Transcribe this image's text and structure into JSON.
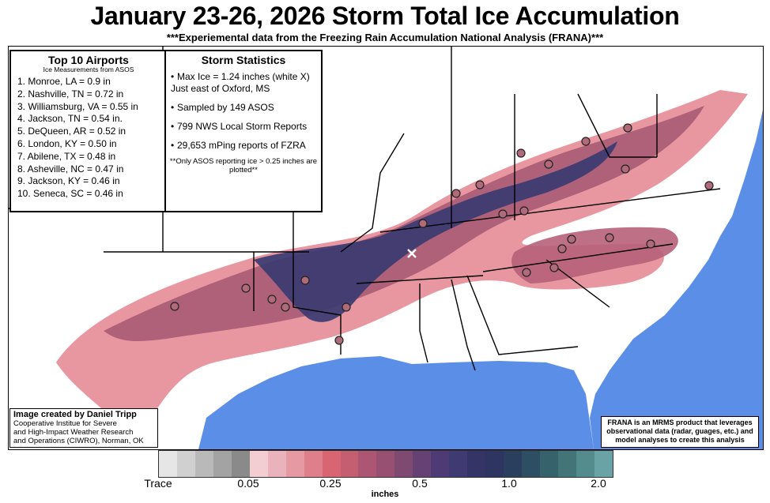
{
  "title": "January 23-26, 2026 Storm Total Ice Accumulation",
  "subtitle": "***Experiemental data from the Freezing Rain Accumulation National Analysis (FRANA)***",
  "airports": {
    "heading": "Top 10 Airports",
    "subheading": "Ice Measurements from ASOS",
    "items": [
      "1. Monroe, LA  = 0.9 in",
      "2. Nashville, TN = 0.72 in",
      "3. Williamsburg, VA = 0.55 in",
      "4. Jackson, TN = 0.54 in.",
      "5. DeQueen, AR = 0.52 in",
      "6. London, KY = 0.50 in",
      "7. Abilene, TX = 0.48 in",
      "8. Asheville, NC = 0.47 in",
      "9. Jackson, KY = 0.46 in",
      "10. Seneca, SC = 0.46 in"
    ]
  },
  "stats": {
    "heading": "Storm Statistics",
    "items": [
      "Max Ice = 1.24 inches (white X) Just east of Oxford, MS",
      "Sampled by 149 ASOS",
      "799 NWS Local Storm Reports",
      "29,653 mPing reports of FZRA"
    ],
    "note": "**Only ASOS reporting ice > 0.25 inches are plotted**"
  },
  "credit": {
    "author": "Image created by Daniel Tripp",
    "lines": [
      "Cooperative Institue for Severe",
      "and High-Impact Weather Research",
      "and Operations (CIWRO), Norman, OK"
    ]
  },
  "frana_note": "FRANA is an MRMS product that leverages observational data (radar, guages, etc.) and model analyses to create this analysis",
  "colorbar": {
    "unit": "inches",
    "ticks": [
      "Trace",
      "0.05",
      "0.25",
      "0.5",
      "1.0",
      "2.0"
    ],
    "colors": [
      "#e6e6e6",
      "#d0d0d0",
      "#b9b9b9",
      "#a3a3a3",
      "#8a8a8a",
      "#f2cdd2",
      "#eab3bb",
      "#e499a3",
      "#df7f8b",
      "#da6572",
      "#c45f72",
      "#ad5673",
      "#975071",
      "#7e4a72",
      "#664274",
      "#4e3b75",
      "#3f3a72",
      "#343566",
      "#2e3561",
      "#2a3f5e",
      "#2e4f63",
      "#36626c",
      "#437478",
      "#548b8c",
      "#6aa3a6"
    ]
  },
  "colors": {
    "ocean": "#5b8ee6",
    "land": "#ffffff",
    "ice_light": "#e58c96",
    "ice_mid": "#a85b74",
    "ice_heavy": "#3a3b72",
    "ice_trace": "#bdbdbd"
  }
}
